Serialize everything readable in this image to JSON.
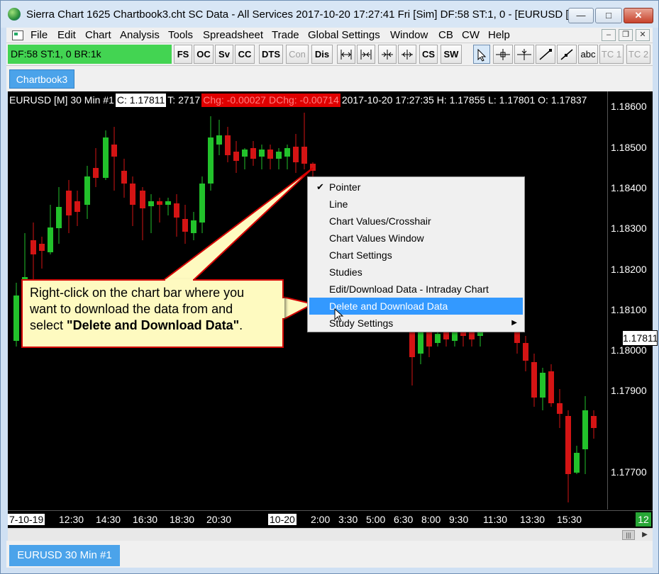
{
  "window": {
    "title": "Sierra Chart 1625 Chartbook3.cht  SC Data - All Services 2017-10-20  17:27:41 Fri [Sim]  DF:58  ST:1, 0 - [EURUSD [...",
    "min_label": "—",
    "max_label": "□",
    "close_label": "✕"
  },
  "menu": {
    "items": [
      "File",
      "Edit",
      "Chart",
      "Analysis",
      "Tools",
      "Spreadsheet",
      "Trade",
      "Global Settings",
      "Window",
      "CB",
      "CW",
      "Help"
    ],
    "mdi_min": "–",
    "mdi_restore": "❐",
    "mdi_close": "✕"
  },
  "toolbar": {
    "status_text": "DF:58  ST:1, 0   BR:1k",
    "status_color": "#43d452",
    "buttons": {
      "fs": "FS",
      "oc": "OC",
      "sv": "Sv",
      "cc": "CC",
      "dts": "DTS",
      "con": "Con",
      "dis": "Dis",
      "cs": "CS",
      "sw": "SW",
      "abc": "abc",
      "tc1": "TC 1",
      "tc2": "TC 2"
    }
  },
  "chartbook_tab": "Chartbook3",
  "chart": {
    "info": {
      "symbol": "EURUSD [M]  30 Min   #1",
      "close": "C: 1.17811",
      "ticks": "T: 2717",
      "chg": "Chg: -0.00027",
      "dchg": "DChg: -0.00714",
      "ohlc": "2017-10-20 17:27:35 H: 1.17855  L: 1.17801  O: 1.17837"
    },
    "price_labels": [
      "1.18600",
      "1.18500",
      "1.18400",
      "1.18300",
      "1.18200",
      "1.18100",
      "1.18000",
      "1.17900",
      "1.17700"
    ],
    "last_price": "1.17811",
    "time_labels": [
      "7-10-19",
      "12:30",
      "14:30",
      "16:30",
      "18:30",
      "20:30",
      "10-20",
      "2:00",
      "3:30",
      "5:00",
      "6:30",
      "8:00",
      "9:30",
      "11:30",
      "13:30",
      "15:30"
    ],
    "bar_count": "12",
    "up_color": "#22c22b",
    "down_color": "#d41414"
  },
  "callout": {
    "line1": "Right-click on the chart bar where you",
    "line2": "want to download the data from and",
    "line3_prefix": "select ",
    "line3_bold": "\"Delete and Download Data\"",
    "line3_suffix": "."
  },
  "context_menu": {
    "items": [
      {
        "label": "Pointer"
      },
      {
        "label": "Line"
      },
      {
        "label": "Chart Values/Crosshair"
      },
      {
        "label": "Chart Values Window"
      },
      {
        "label": "Chart Settings"
      },
      {
        "label": "Studies"
      },
      {
        "label": "Edit/Download Data - Intraday Chart"
      },
      {
        "label": "Delete and Download Data"
      },
      {
        "label": "Study Settings"
      }
    ],
    "check_glyph": "✔",
    "submenu_glyph": "▶"
  },
  "bottom_tab": "EURUSD   30 Min   #1"
}
